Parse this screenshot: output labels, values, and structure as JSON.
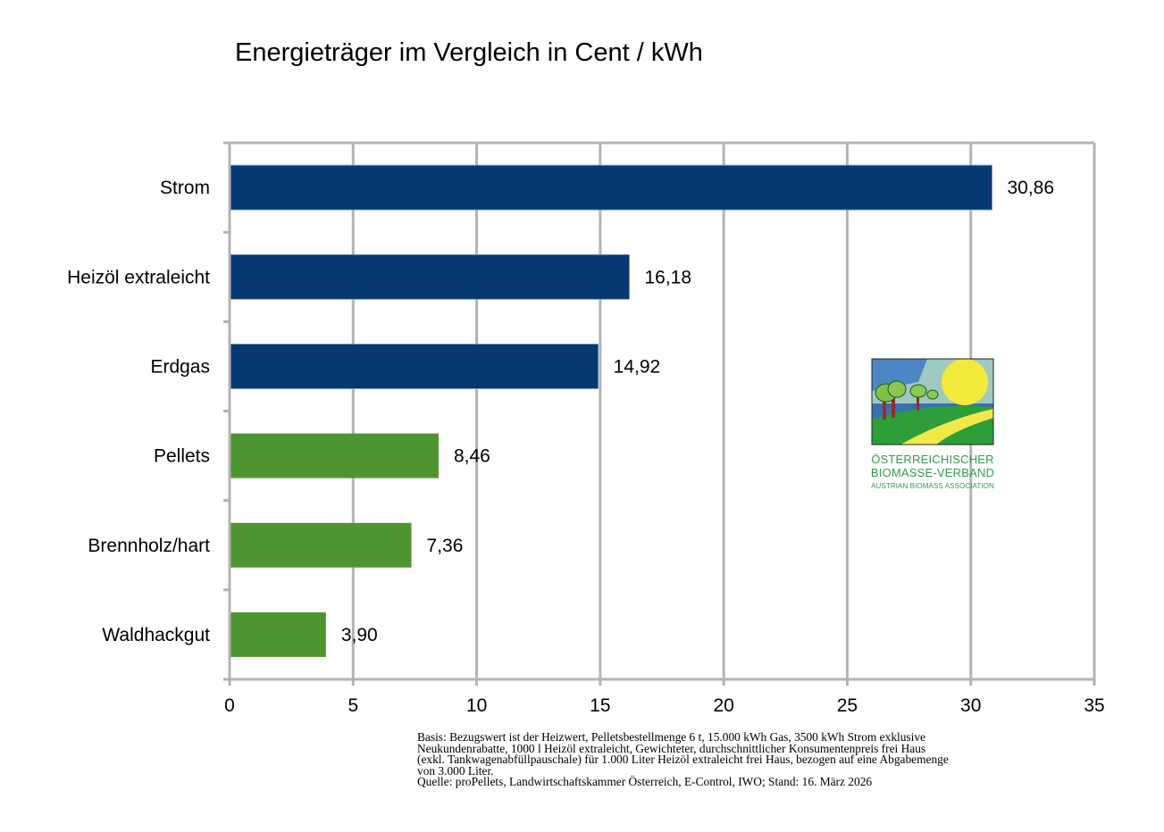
{
  "chart_data": {
    "type": "bar",
    "orientation": "horizontal",
    "title": "Energieträger im Vergleich in Cent / kWh",
    "xlabel": "",
    "ylabel": "",
    "xlim": [
      0,
      35
    ],
    "x_ticks": [
      0,
      5,
      10,
      15,
      20,
      25,
      30,
      35
    ],
    "x_tick_labels": [
      "0",
      "5",
      "10",
      "15",
      "20",
      "25",
      "30",
      "35"
    ],
    "grid": true,
    "legend": "none",
    "categories": [
      "Strom",
      "Heizöl extraleicht",
      "Erdgas",
      "Pellets",
      "Brennholz/hart",
      "Waldhackgut"
    ],
    "values": [
      30.86,
      16.18,
      14.92,
      8.46,
      7.36,
      3.9
    ],
    "value_labels": [
      "30,86",
      "16,18",
      "14,92",
      "8,46",
      "7,36",
      "3,90"
    ],
    "bar_colors": [
      "#063872",
      "#063872",
      "#063872",
      "#4f952f",
      "#4f952f",
      "#4f952f"
    ],
    "grid_color": "#b3b3b3"
  },
  "logo": {
    "line1": "ÖSTERREICHISCHER",
    "line2": "BIOMASSE-VERBAND",
    "line3": "AUSTRIAN BIOMASS ASSOCIATION"
  },
  "footnote": {
    "line1": "Basis: Bezugswert ist der Heizwert, Pelletsbestellmenge 6 t, 15.000 kWh Gas, 3500 kWh Strom exklusive",
    "line2": "Neukundenrabatte, 1000 l Heizöl extraleicht, Gewichteter, durchschnittlicher Konsumentenpreis frei Haus",
    "line3": "(exkl. Tankwagenabfüllpauschale) für 1.000 Liter Heizöl extraleicht frei Haus, bezogen auf eine Abgabemenge",
    "line4": "von 3.000 Liter.",
    "line5": "Quelle: proPellets, Landwirtschaftskammer Österreich, E-Control, IWO; Stand: 16. März 2026"
  }
}
